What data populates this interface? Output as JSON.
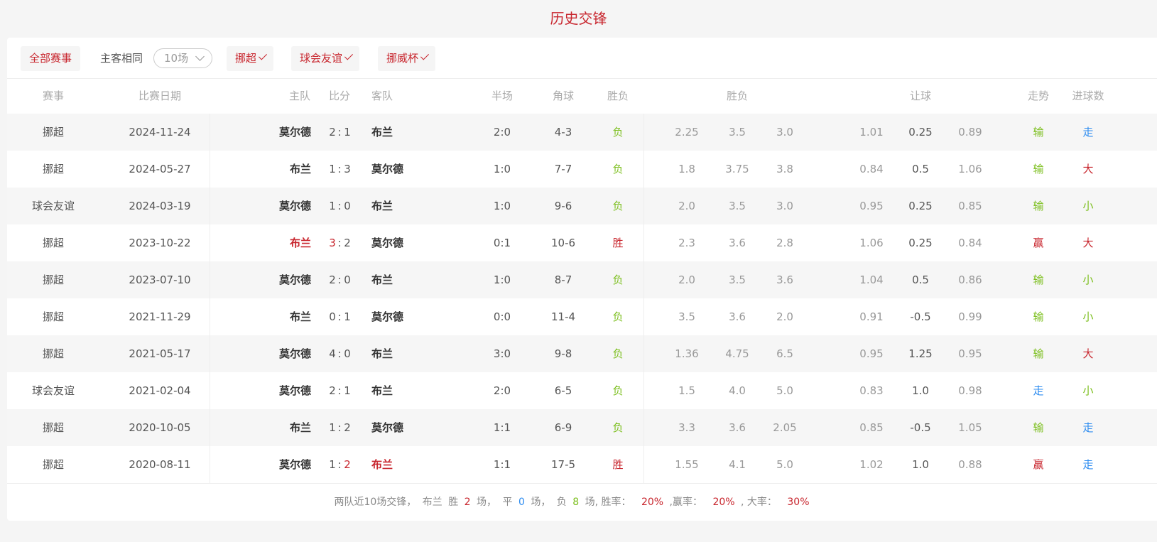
{
  "title": "历史交锋",
  "colors": {
    "red": "#c8262e",
    "green": "#7cbf1e",
    "blue": "#2d8cf0"
  },
  "toolbar": {
    "all_label": "全部赛事",
    "same_label": "主客相同",
    "count_select": "10场",
    "filters": [
      "挪超",
      "球会友谊",
      "挪威杯"
    ]
  },
  "headers": {
    "league": "赛事",
    "date": "比赛日期",
    "home": "主队",
    "score": "比分",
    "away": "客队",
    "half": "半场",
    "corner": "角球",
    "result": "胜负",
    "odds_group": "胜负",
    "handicap_group": "让球",
    "trend": "走势",
    "goals": "进球数"
  },
  "rows": [
    {
      "league": "挪超",
      "date": "2024-11-24",
      "home": "莫尔德",
      "hs": "2",
      "as": "1",
      "away": "布兰",
      "half": "2:0",
      "corner": "4-3",
      "result": "负",
      "o1": "2.25",
      "o2": "3.5",
      "o3": "3.0",
      "h1": "1.01",
      "h2": "0.25",
      "h3": "0.89",
      "trend": "输",
      "goals": "走"
    },
    {
      "league": "挪超",
      "date": "2024-05-27",
      "home": "布兰",
      "hs": "1",
      "as": "3",
      "away": "莫尔德",
      "half": "1:0",
      "corner": "7-7",
      "result": "负",
      "o1": "1.8",
      "o2": "3.75",
      "o3": "3.8",
      "h1": "0.84",
      "h2": "0.5",
      "h3": "1.06",
      "trend": "输",
      "goals": "大"
    },
    {
      "league": "球会友谊",
      "date": "2024-03-19",
      "home": "莫尔德",
      "hs": "1",
      "as": "0",
      "away": "布兰",
      "half": "1:0",
      "corner": "9-6",
      "result": "负",
      "o1": "2.0",
      "o2": "3.5",
      "o3": "3.0",
      "h1": "0.95",
      "h2": "0.25",
      "h3": "0.85",
      "trend": "输",
      "goals": "小"
    },
    {
      "league": "挪超",
      "date": "2023-10-22",
      "home": "布兰",
      "hs": "3",
      "as": "2",
      "away": "莫尔德",
      "half": "0:1",
      "corner": "10-6",
      "result": "胜",
      "o1": "2.3",
      "o2": "3.6",
      "o3": "2.8",
      "h1": "1.06",
      "h2": "0.25",
      "h3": "0.84",
      "trend": "赢",
      "goals": "大",
      "hl": "home"
    },
    {
      "league": "挪超",
      "date": "2023-07-10",
      "home": "莫尔德",
      "hs": "2",
      "as": "0",
      "away": "布兰",
      "half": "1:0",
      "corner": "8-7",
      "result": "负",
      "o1": "2.0",
      "o2": "3.5",
      "o3": "3.6",
      "h1": "1.04",
      "h2": "0.5",
      "h3": "0.86",
      "trend": "输",
      "goals": "小"
    },
    {
      "league": "挪超",
      "date": "2021-11-29",
      "home": "布兰",
      "hs": "0",
      "as": "1",
      "away": "莫尔德",
      "half": "0:0",
      "corner": "11-4",
      "result": "负",
      "o1": "3.5",
      "o2": "3.6",
      "o3": "2.0",
      "h1": "0.91",
      "h2": "-0.5",
      "h3": "0.99",
      "trend": "输",
      "goals": "小"
    },
    {
      "league": "挪超",
      "date": "2021-05-17",
      "home": "莫尔德",
      "hs": "4",
      "as": "0",
      "away": "布兰",
      "half": "3:0",
      "corner": "9-8",
      "result": "负",
      "o1": "1.36",
      "o2": "4.75",
      "o3": "6.5",
      "h1": "0.95",
      "h2": "1.25",
      "h3": "0.95",
      "trend": "输",
      "goals": "大"
    },
    {
      "league": "球会友谊",
      "date": "2021-02-04",
      "home": "莫尔德",
      "hs": "2",
      "as": "1",
      "away": "布兰",
      "half": "2:0",
      "corner": "6-5",
      "result": "负",
      "o1": "1.5",
      "o2": "4.0",
      "o3": "5.0",
      "h1": "0.83",
      "h2": "1.0",
      "h3": "0.98",
      "trend": "走",
      "goals": "小"
    },
    {
      "league": "挪超",
      "date": "2020-10-05",
      "home": "布兰",
      "hs": "1",
      "as": "2",
      "away": "莫尔德",
      "half": "1:1",
      "corner": "6-9",
      "result": "负",
      "o1": "3.3",
      "o2": "3.6",
      "o3": "2.05",
      "h1": "0.85",
      "h2": "-0.5",
      "h3": "1.05",
      "trend": "输",
      "goals": "走"
    },
    {
      "league": "挪超",
      "date": "2020-08-11",
      "home": "莫尔德",
      "hs": "1",
      "as": "2",
      "away": "布兰",
      "half": "1:1",
      "corner": "17-5",
      "result": "胜",
      "o1": "1.55",
      "o2": "4.1",
      "o3": "5.0",
      "h1": "1.02",
      "h2": "1.0",
      "h3": "0.88",
      "trend": "赢",
      "goals": "走",
      "hl": "away"
    }
  ],
  "footer": {
    "t1": "两队近10场交锋，",
    "team": "布兰",
    "t2": "胜",
    "win": "2",
    "t3": "场，",
    "t4": "平",
    "draw": "0",
    "t5": "场，",
    "t6": "负",
    "loss": "8",
    "t7": "场, 胜率：",
    "win_rate": "20%",
    "t8": ",赢率：",
    "ying_rate": "20%",
    "t9": ", 大率：",
    "big_rate": "30%"
  }
}
